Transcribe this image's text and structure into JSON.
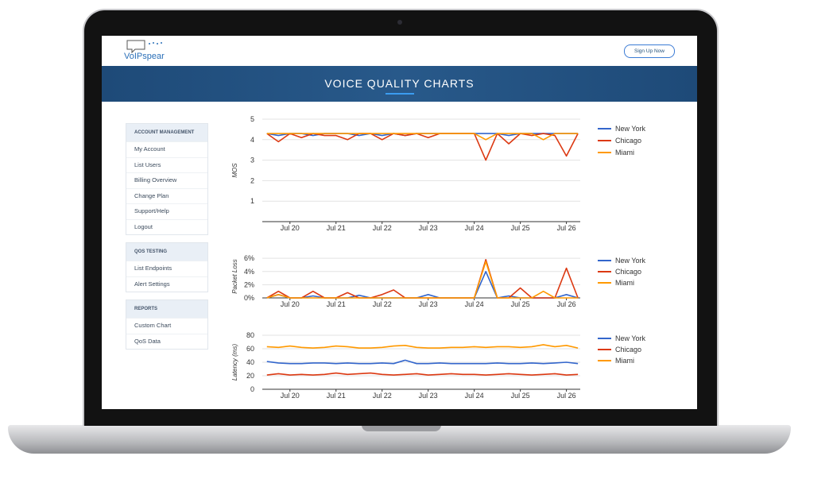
{
  "header": {
    "logo": "VoIPspear",
    "button": "Sign Up Now"
  },
  "banner": {
    "title": "VOICE QUALITY CHARTS"
  },
  "sidebar": [
    {
      "heading": "ACCOUNT MANAGEMENT",
      "items": [
        "My Account",
        "List Users",
        "Billing Overview",
        "Change Plan",
        "Support/Help",
        "Logout"
      ]
    },
    {
      "heading": "QOS TESTING",
      "items": [
        "List Endpoints",
        "Alert Settings"
      ]
    },
    {
      "heading": "REPORTS",
      "items": [
        "Custom Chart",
        "QoS Data"
      ]
    }
  ],
  "chart_data": [
    {
      "type": "line",
      "y_label": "MOS",
      "grid": true,
      "legend": "right",
      "x": [
        19.5,
        19.75,
        20,
        20.25,
        20.5,
        20.75,
        21,
        21.25,
        21.5,
        21.75,
        22,
        22.25,
        22.5,
        22.75,
        23,
        23.25,
        23.5,
        23.75,
        24,
        24.25,
        24.5,
        24.75,
        25,
        25.25,
        25.5,
        25.75,
        26,
        26.25
      ],
      "xlim": [
        19.4,
        26.3
      ],
      "xticks": [
        {
          "value": 20,
          "label": "Jul 20"
        },
        {
          "value": 21,
          "label": "Jul 21"
        },
        {
          "value": 22,
          "label": "Jul 22"
        },
        {
          "value": 23,
          "label": "Jul 23"
        },
        {
          "value": 24,
          "label": "Jul 24"
        },
        {
          "value": 25,
          "label": "Jul 25"
        },
        {
          "value": 26,
          "label": "Jul 26"
        }
      ],
      "ylim": [
        0,
        5
      ],
      "yticks": [
        1,
        2,
        3,
        4,
        5
      ],
      "series": [
        {
          "name": "New York",
          "color": "#3366cc",
          "values": [
            4.3,
            4.2,
            4.3,
            4.3,
            4.2,
            4.3,
            4.3,
            4.3,
            4.2,
            4.3,
            4.2,
            4.3,
            4.2,
            4.3,
            4.3,
            4.3,
            4.3,
            4.3,
            4.3,
            4.3,
            4.3,
            4.2,
            4.3,
            4.3,
            4.3,
            4.3,
            4.3,
            4.3
          ]
        },
        {
          "name": "Chicago",
          "color": "#dc3912",
          "values": [
            4.3,
            3.9,
            4.3,
            4.1,
            4.3,
            4.2,
            4.2,
            4.0,
            4.3,
            4.3,
            4.0,
            4.3,
            4.2,
            4.3,
            4.1,
            4.3,
            4.3,
            4.3,
            4.3,
            3.0,
            4.3,
            3.8,
            4.3,
            4.2,
            4.3,
            4.2,
            3.2,
            4.3
          ]
        },
        {
          "name": "Miami",
          "color": "#ff9900",
          "values": [
            4.3,
            4.3,
            4.3,
            4.3,
            4.3,
            4.3,
            4.3,
            4.3,
            4.3,
            4.3,
            4.3,
            4.3,
            4.3,
            4.3,
            4.3,
            4.3,
            4.3,
            4.3,
            4.3,
            4.0,
            4.3,
            4.3,
            4.3,
            4.3,
            4.0,
            4.3,
            4.3,
            4.3
          ]
        }
      ]
    },
    {
      "type": "line",
      "y_label": "Packet Loss",
      "grid": true,
      "legend": "right",
      "x": [
        19.5,
        19.75,
        20,
        20.25,
        20.5,
        20.75,
        21,
        21.25,
        21.5,
        21.75,
        22,
        22.25,
        22.5,
        22.75,
        23,
        23.25,
        23.5,
        23.75,
        24,
        24.25,
        24.5,
        24.75,
        25,
        25.25,
        25.5,
        25.75,
        26,
        26.25
      ],
      "xlim": [
        19.4,
        26.3
      ],
      "xticks": [
        {
          "value": 20,
          "label": "Jul 20"
        },
        {
          "value": 21,
          "label": "Jul 21"
        },
        {
          "value": 22,
          "label": "Jul 22"
        },
        {
          "value": 23,
          "label": "Jul 23"
        },
        {
          "value": 24,
          "label": "Jul 24"
        },
        {
          "value": 25,
          "label": "Jul 25"
        },
        {
          "value": 26,
          "label": "Jul 26"
        }
      ],
      "ylim": [
        0,
        6.5
      ],
      "yticks": [
        {
          "value": 0,
          "label": "0%"
        },
        {
          "value": 2,
          "label": "2%"
        },
        {
          "value": 4,
          "label": "4%"
        },
        {
          "value": 6,
          "label": "6%"
        }
      ],
      "series": [
        {
          "name": "New York",
          "color": "#3366cc",
          "values": [
            0,
            0.5,
            0,
            0,
            0.3,
            0,
            0,
            0,
            0.4,
            0,
            0,
            0,
            0,
            0,
            0.5,
            0,
            0,
            0,
            0,
            4.0,
            0,
            0.3,
            0,
            0,
            0,
            0,
            0.5,
            0
          ]
        },
        {
          "name": "Chicago",
          "color": "#dc3912",
          "values": [
            0,
            1.0,
            0,
            0,
            1.0,
            0,
            0,
            0.8,
            0,
            0,
            0.5,
            1.2,
            0,
            0,
            0,
            0,
            0,
            0,
            0,
            5.8,
            0,
            0,
            1.5,
            0,
            0,
            0,
            4.5,
            0
          ]
        },
        {
          "name": "Miami",
          "color": "#ff9900",
          "values": [
            0,
            0.5,
            0,
            0,
            0,
            0,
            0,
            0,
            0,
            0,
            0,
            0,
            0,
            0,
            0,
            0,
            0,
            0,
            0,
            5.5,
            0,
            0,
            0,
            0,
            1.0,
            0,
            0,
            0
          ]
        }
      ]
    },
    {
      "type": "line",
      "y_label": "Latency (ms)",
      "grid": true,
      "legend": "right",
      "x": [
        19.5,
        19.75,
        20,
        20.25,
        20.5,
        20.75,
        21,
        21.25,
        21.5,
        21.75,
        22,
        22.25,
        22.5,
        22.75,
        23,
        23.25,
        23.5,
        23.75,
        24,
        24.25,
        24.5,
        24.75,
        25,
        25.25,
        25.5,
        25.75,
        26,
        26.25
      ],
      "xlim": [
        19.4,
        26.3
      ],
      "xticks": [
        {
          "value": 20,
          "label": "Jul 20"
        },
        {
          "value": 21,
          "label": "Jul 21"
        },
        {
          "value": 22,
          "label": "Jul 22"
        },
        {
          "value": 23,
          "label": "Jul 23"
        },
        {
          "value": 24,
          "label": "Jul 24"
        },
        {
          "value": 25,
          "label": "Jul 25"
        },
        {
          "value": 26,
          "label": "Jul 26"
        }
      ],
      "ylim": [
        0,
        80
      ],
      "yticks": [
        0,
        20,
        40,
        60,
        80
      ],
      "series": [
        {
          "name": "New York",
          "color": "#3366cc",
          "values": [
            41,
            39,
            38,
            38,
            39,
            39,
            38,
            39,
            38,
            38,
            39,
            38,
            43,
            38,
            38,
            39,
            38,
            38,
            38,
            38,
            39,
            38,
            38,
            39,
            38,
            39,
            40,
            38
          ]
        },
        {
          "name": "Chicago",
          "color": "#dc3912",
          "values": [
            21,
            23,
            21,
            22,
            21,
            22,
            24,
            22,
            23,
            24,
            22,
            21,
            22,
            23,
            21,
            22,
            23,
            22,
            22,
            21,
            22,
            23,
            22,
            21,
            22,
            23,
            21,
            22
          ]
        },
        {
          "name": "Miami",
          "color": "#ff9900",
          "values": [
            63,
            62,
            64,
            62,
            61,
            62,
            64,
            63,
            61,
            61,
            62,
            64,
            65,
            62,
            61,
            61,
            62,
            62,
            63,
            62,
            63,
            63,
            62,
            63,
            66,
            63,
            65,
            61
          ]
        }
      ]
    }
  ]
}
